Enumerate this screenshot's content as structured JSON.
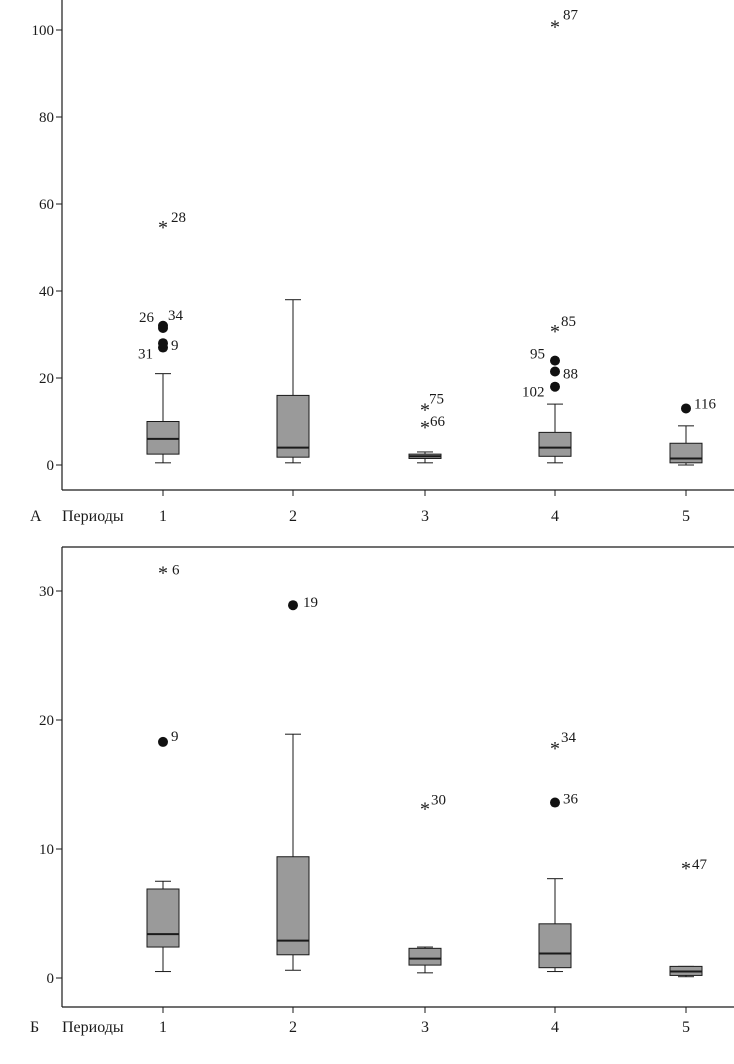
{
  "chart_data": [
    {
      "type": "box",
      "panel_letter": "А",
      "xlabel": "Периоды",
      "categories": [
        "1",
        "2",
        "3",
        "4",
        "5"
      ],
      "ylim": [
        -4,
        106
      ],
      "yticks": [
        0,
        20,
        40,
        60,
        80,
        100
      ],
      "boxes": [
        {
          "category": "1",
          "min": 0.5,
          "q1": 2.5,
          "median": 6,
          "q3": 10,
          "max": 21
        },
        {
          "category": "2",
          "min": 0.5,
          "q1": 1.8,
          "median": 4,
          "q3": 16,
          "max": 38
        },
        {
          "category": "3",
          "min": 0.5,
          "q1": 1.5,
          "median": 2,
          "q3": 2.5,
          "max": 3
        },
        {
          "category": "4",
          "min": 0.5,
          "q1": 2,
          "median": 4,
          "q3": 7.5,
          "max": 14
        },
        {
          "category": "5",
          "min": 0,
          "q1": 0.5,
          "median": 1.5,
          "q3": 5,
          "max": 9
        }
      ],
      "outliers": [
        {
          "category": "1",
          "value": 55,
          "marker": "star",
          "label": "28"
        },
        {
          "category": "1",
          "value": 31.5,
          "marker": "dot",
          "label": "26"
        },
        {
          "category": "1",
          "value": 32,
          "marker": "dot",
          "label": "34"
        },
        {
          "category": "1",
          "value": 27,
          "marker": "dot",
          "label": "31"
        },
        {
          "category": "1",
          "value": 28,
          "marker": "dot",
          "label": "9"
        },
        {
          "category": "3",
          "value": 13,
          "marker": "star",
          "label": "75"
        },
        {
          "category": "3",
          "value": 9,
          "marker": "star",
          "label": "66"
        },
        {
          "category": "4",
          "value": 101,
          "marker": "star",
          "label": "87"
        },
        {
          "category": "4",
          "value": 31,
          "marker": "star",
          "label": "85"
        },
        {
          "category": "4",
          "value": 24,
          "marker": "dot",
          "label": "95"
        },
        {
          "category": "4",
          "value": 21.5,
          "marker": "dot",
          "label": "88"
        },
        {
          "category": "4",
          "value": 18,
          "marker": "dot",
          "label": "102"
        },
        {
          "category": "5",
          "value": 13,
          "marker": "dot",
          "label": "116"
        }
      ]
    },
    {
      "type": "box",
      "panel_letter": "Б",
      "xlabel": "Периоды",
      "categories": [
        "1",
        "2",
        "3",
        "4",
        "5"
      ],
      "ylim": [
        -2,
        33
      ],
      "yticks": [
        0,
        10,
        20,
        30
      ],
      "boxes": [
        {
          "category": "1",
          "min": 0.5,
          "q1": 2.4,
          "median": 3.4,
          "q3": 6.9,
          "max": 7.5
        },
        {
          "category": "2",
          "min": 0.6,
          "q1": 1.8,
          "median": 2.9,
          "q3": 9.4,
          "max": 18.9
        },
        {
          "category": "3",
          "min": 0.4,
          "q1": 1.0,
          "median": 1.5,
          "q3": 2.3,
          "max": 2.4
        },
        {
          "category": "4",
          "min": 0.5,
          "q1": 0.8,
          "median": 1.9,
          "q3": 4.2,
          "max": 7.7
        },
        {
          "category": "5",
          "min": 0.1,
          "q1": 0.2,
          "median": 0.5,
          "q3": 0.9,
          "max": 0.9
        }
      ],
      "outliers": [
        {
          "category": "1",
          "value": 31.5,
          "marker": "star",
          "label": "6"
        },
        {
          "category": "1",
          "value": 18.3,
          "marker": "dot",
          "label": "9"
        },
        {
          "category": "2",
          "value": 28.9,
          "marker": "dot",
          "label": "19"
        },
        {
          "category": "3",
          "value": 13.2,
          "marker": "star",
          "label": "30"
        },
        {
          "category": "4",
          "value": 17.9,
          "marker": "star",
          "label": "34"
        },
        {
          "category": "4",
          "value": 13.6,
          "marker": "dot",
          "label": "36"
        },
        {
          "category": "5",
          "value": 8.6,
          "marker": "star",
          "label": "47"
        }
      ]
    }
  ]
}
